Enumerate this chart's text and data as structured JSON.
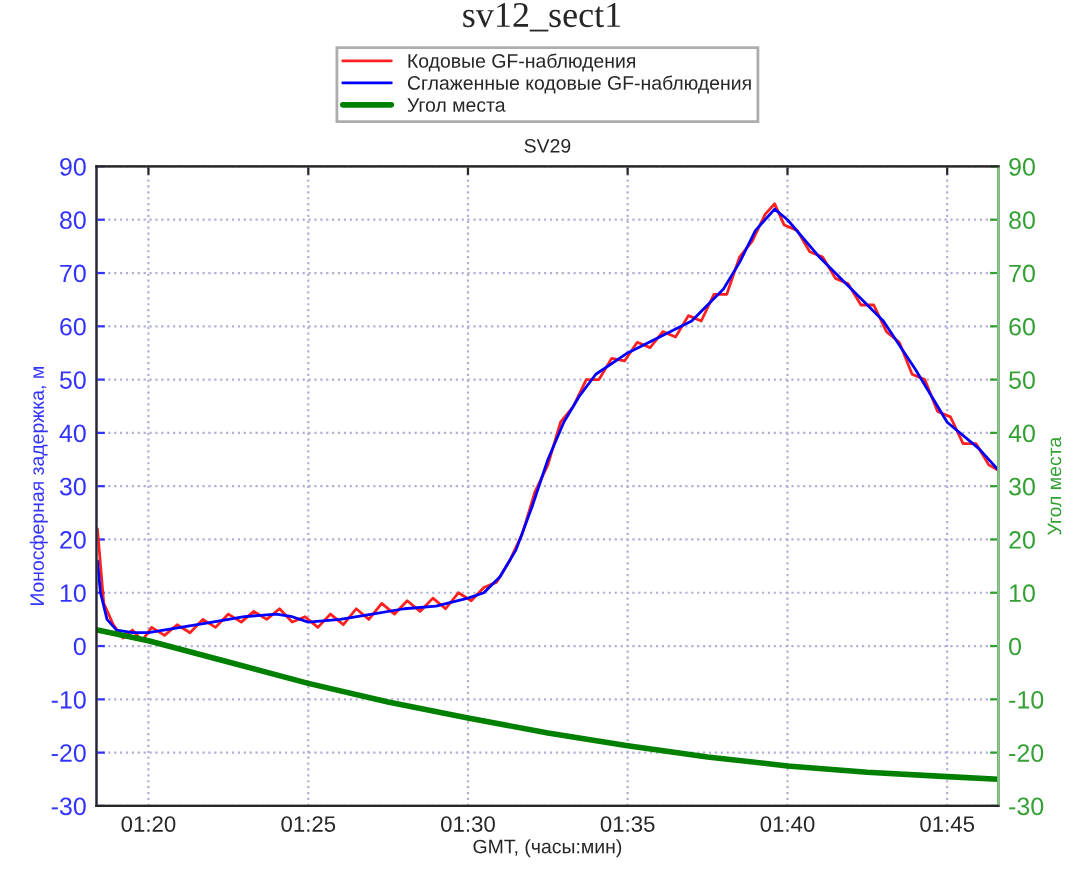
{
  "chart_data": {
    "type": "line",
    "title": "sv12_sect1",
    "subtitle": "SV29",
    "xlabel": "GMT, (часы:мин)",
    "ylabel": "Ионосферная задержка, м",
    "y2label": "Угол места",
    "xlim": [
      1.3062,
      1.7767
    ],
    "xticks": [
      {
        "value": 1.3333,
        "label": "01:20"
      },
      {
        "value": 1.4167,
        "label": "01:25"
      },
      {
        "value": 1.5,
        "label": "01:30"
      },
      {
        "value": 1.5833,
        "label": "01:35"
      },
      {
        "value": 1.6667,
        "label": "01:40"
      },
      {
        "value": 1.75,
        "label": "01:45"
      }
    ],
    "ylim": [
      -30,
      90
    ],
    "yticks": [
      -30,
      -20,
      -10,
      0,
      10,
      20,
      30,
      40,
      50,
      60,
      70,
      80,
      90
    ],
    "y2lim": [
      -30,
      90
    ],
    "y2ticks": [
      -30,
      -20,
      -10,
      0,
      10,
      20,
      30,
      40,
      50,
      60,
      70,
      80,
      90
    ],
    "grid": true,
    "legend": "top",
    "marker": "none",
    "line_style": "solid",
    "series": [
      {
        "name": "Кодовые GF-наблюдения",
        "color": "#ff2020",
        "x": [
          1.3067,
          1.31,
          1.315,
          1.32,
          1.325,
          1.33,
          1.335,
          1.3417,
          1.3483,
          1.355,
          1.3617,
          1.3683,
          1.375,
          1.3817,
          1.3883,
          1.395,
          1.4017,
          1.4083,
          1.415,
          1.4217,
          1.4283,
          1.435,
          1.4417,
          1.4483,
          1.455,
          1.4617,
          1.4683,
          1.475,
          1.4817,
          1.4883,
          1.495,
          1.5017,
          1.5083,
          1.515,
          1.5217,
          1.5283,
          1.535,
          1.5417,
          1.5483,
          1.555,
          1.5617,
          1.5683,
          1.575,
          1.5817,
          1.5883,
          1.595,
          1.6017,
          1.6083,
          1.615,
          1.6217,
          1.6283,
          1.635,
          1.6417,
          1.6483,
          1.655,
          1.66,
          1.665,
          1.6717,
          1.6783,
          1.685,
          1.6917,
          1.6983,
          1.705,
          1.7117,
          1.7183,
          1.725,
          1.7317,
          1.7383,
          1.745,
          1.7517,
          1.7583,
          1.765,
          1.7717,
          1.7767
        ],
        "values": [
          22,
          8,
          4,
          1.5,
          3,
          1,
          3.5,
          2,
          4,
          2.5,
          5,
          3.5,
          6,
          4.5,
          6.5,
          5,
          7,
          4.5,
          5.5,
          3.5,
          6,
          4,
          7,
          5,
          8,
          6,
          8.5,
          6.5,
          9,
          7,
          10,
          8.5,
          11,
          12,
          16,
          21,
          29,
          34,
          42,
          45,
          50,
          50,
          54,
          53.5,
          57,
          56,
          59,
          58,
          62,
          61,
          66,
          66,
          73,
          76,
          81,
          83,
          79,
          78,
          74,
          73,
          69,
          68,
          64,
          64,
          59,
          57,
          51,
          50,
          44,
          43,
          38,
          38,
          34,
          33
        ]
      },
      {
        "name": "Сглаженные кодовые GF-наблюдения",
        "color": "#0000ff",
        "x": [
          1.3067,
          1.3083,
          1.3117,
          1.3167,
          1.325,
          1.3333,
          1.35,
          1.3667,
          1.3833,
          1.4,
          1.4083,
          1.4167,
          1.4333,
          1.45,
          1.4667,
          1.4833,
          1.5,
          1.5083,
          1.5167,
          1.525,
          1.5333,
          1.5417,
          1.55,
          1.5583,
          1.5667,
          1.5833,
          1.6,
          1.6167,
          1.6333,
          1.6417,
          1.65,
          1.66,
          1.6667,
          1.6833,
          1.7,
          1.7167,
          1.7333,
          1.75,
          1.7667,
          1.7767
        ],
        "values": [
          16,
          10,
          5,
          3,
          2.5,
          2.5,
          3.5,
          4.5,
          5.5,
          6,
          5.5,
          4.5,
          5,
          6,
          7,
          7.5,
          9,
          10,
          13,
          18,
          26,
          35,
          42,
          47,
          51,
          55,
          58,
          61,
          67,
          72,
          78,
          82,
          80,
          73,
          67,
          61,
          52,
          42,
          37,
          33
        ]
      },
      {
        "name": "Угол места",
        "color": "#008000",
        "axis": "y2",
        "x": [
          1.3067,
          1.3333,
          1.375,
          1.4167,
          1.4583,
          1.5,
          1.5417,
          1.5833,
          1.625,
          1.6667,
          1.7083,
          1.75,
          1.7767
        ],
        "values": [
          3,
          1,
          -3,
          -7,
          -10.5,
          -13.5,
          -16.3,
          -18.7,
          -20.8,
          -22.5,
          -23.7,
          -24.5,
          -25
        ]
      }
    ]
  }
}
